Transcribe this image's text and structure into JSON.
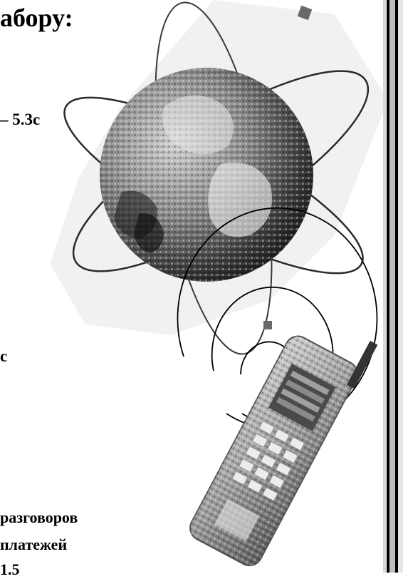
{
  "heading": {
    "text": "абору:"
  },
  "lines": {
    "line1": "– 5.3с",
    "line2": "с",
    "line3": "разговоров",
    "line4": "платежей",
    "line5": "1.5"
  },
  "illustration": {
    "globe_icon": "globe-icon",
    "phone_icon": "mobile-phone-icon",
    "signal_icon": "signal-waves-icon"
  },
  "colors": {
    "background": "#ffffff",
    "text": "#000000",
    "border_light": "#d8d8d8",
    "border_dark": "#000000"
  }
}
